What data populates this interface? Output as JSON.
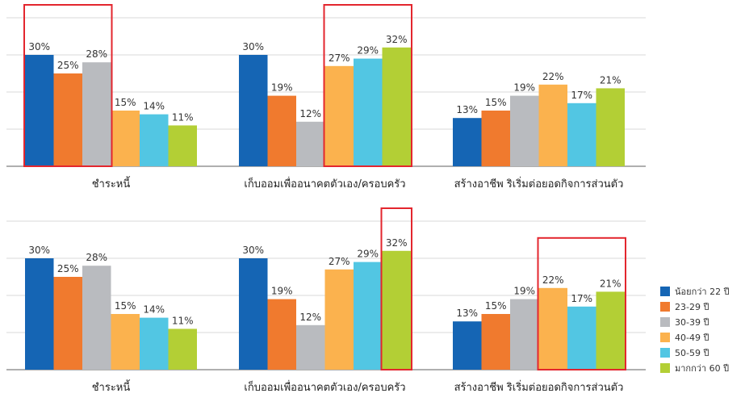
{
  "chart_data": [
    {
      "type": "bar",
      "categories": [
        "ชำระหนี้",
        "เก็บออมเพื่ออนาคตตัวเอง/ครอบครัว",
        "สร้างอาชีพ ริเริ่มต่อยอดกิจการส่วนตัว"
      ],
      "series": [
        {
          "name": "น้อยกว่า 22 ปี",
          "values": [
            30,
            30,
            13
          ]
        },
        {
          "name": "23-29 ปี",
          "values": [
            25,
            19,
            15
          ]
        },
        {
          "name": "30-39 ปี",
          "values": [
            28,
            12,
            19
          ]
        },
        {
          "name": "40-49 ปี",
          "values": [
            15,
            27,
            22
          ]
        },
        {
          "name": "50-59 ปี",
          "values": [
            14,
            29,
            17
          ]
        },
        {
          "name": "มากกว่า 60 ปี",
          "values": [
            11,
            32,
            21
          ]
        }
      ],
      "value_suffix": "%",
      "highlights": [
        {
          "category": 0,
          "series": [
            0,
            1,
            2
          ]
        },
        {
          "category": 1,
          "series": [
            3,
            4,
            5
          ]
        }
      ],
      "ylim": [
        0,
        40
      ],
      "grid": true
    },
    {
      "type": "bar",
      "categories": [
        "ชำระหนี้",
        "เก็บออมเพื่ออนาคตตัวเอง/ครอบครัว",
        "สร้างอาชีพ ริเริ่มต่อยอดกิจการส่วนตัว"
      ],
      "series": [
        {
          "name": "น้อยกว่า 22 ปี",
          "values": [
            30,
            30,
            13
          ]
        },
        {
          "name": "23-29 ปี",
          "values": [
            25,
            19,
            15
          ]
        },
        {
          "name": "30-39 ปี",
          "values": [
            28,
            12,
            19
          ]
        },
        {
          "name": "40-49 ปี",
          "values": [
            15,
            27,
            22
          ]
        },
        {
          "name": "50-59 ปี",
          "values": [
            14,
            29,
            17
          ]
        },
        {
          "name": "มากกว่า 60 ปี",
          "values": [
            11,
            32,
            21
          ]
        }
      ],
      "value_suffix": "%",
      "highlights": [
        {
          "category": 1,
          "series": [
            5
          ]
        },
        {
          "category": 2,
          "series": [
            3,
            4,
            5
          ]
        }
      ],
      "ylim": [
        0,
        40
      ],
      "grid": true
    }
  ],
  "legend": {
    "placement": "right",
    "items": [
      {
        "label": "น้อยกว่า 22 ปี",
        "color": "#1565b4"
      },
      {
        "label": "23-29 ปี",
        "color": "#f07a2e"
      },
      {
        "label": "30-39 ปี",
        "color": "#b9bbbf"
      },
      {
        "label": "40-49 ปี",
        "color": "#fbb24e"
      },
      {
        "label": "50-59 ปี",
        "color": "#52c6e3"
      },
      {
        "label": "มากกว่า 60 ปี",
        "color": "#b3cf35"
      }
    ]
  },
  "colors": {
    "grid": "#d9d9d9",
    "axis": "#7f7f7f",
    "highlight": "#e3262e",
    "value_text": "#333333",
    "category_text": "#222222"
  }
}
